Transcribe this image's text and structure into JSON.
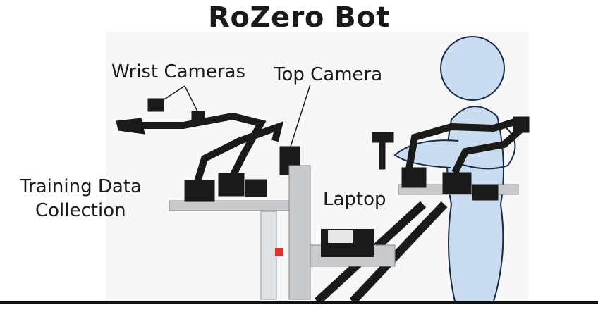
{
  "title": "RoZero Bot",
  "labels": {
    "wrist_cameras": "Wrist Cameras",
    "top_camera": "Top Camera",
    "training_line1": "Training Data",
    "training_line2": "Collection",
    "laptop": "Laptop"
  },
  "colors": {
    "human_fill": "#c9dcf0",
    "human_stroke": "#1b2a44",
    "robot": "#1a1a1a",
    "table": "#c8cacd",
    "ground": "#111111"
  }
}
